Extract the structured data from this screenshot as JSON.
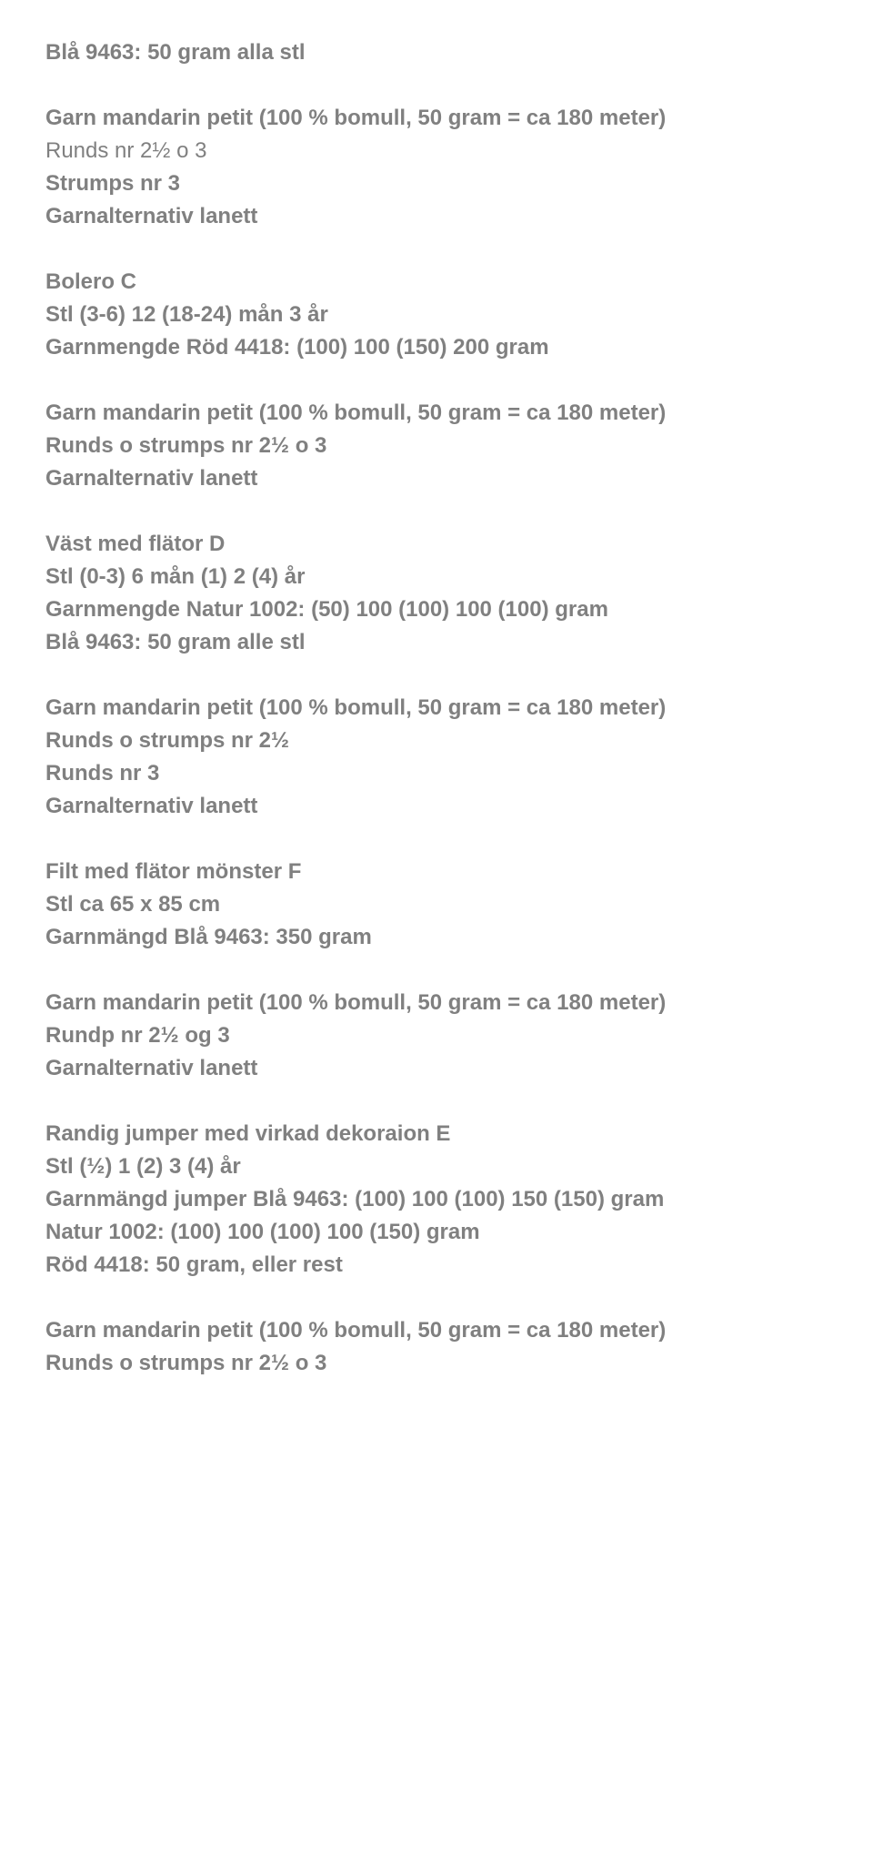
{
  "text_color": "#808080",
  "background_color": "#ffffff",
  "font_family": "Arial, Helvetica, sans-serif",
  "font_size_pt": 18,
  "sections": [
    {
      "lines": [
        {
          "text": "Blå 9463: 50 gram alla stl",
          "bold": true
        }
      ]
    },
    {
      "lines": [
        {
          "text": "Garn mandarin petit (100 % bomull, 50 gram = ca 180 meter)",
          "bold": true
        },
        {
          "text": "Runds nr 2½ o 3",
          "bold": false
        },
        {
          "text": "Strumps nr 3",
          "bold": true
        },
        {
          "text": "Garnalternativ lanett",
          "bold": true
        }
      ]
    },
    {
      "lines": [
        {
          "text": "Bolero C",
          "bold": true
        },
        {
          "text": "Stl (3-6) 12 (18-24) mån 3 år",
          "bold": true
        },
        {
          "text": "Garnmengde Röd 4418: (100) 100 (150) 200 gram",
          "bold": true
        }
      ]
    },
    {
      "lines": [
        {
          "text": "Garn mandarin petit (100 % bomull, 50 gram = ca 180 meter)",
          "bold": true
        },
        {
          "text": "Runds o strumps nr 2½ o 3",
          "bold": true
        },
        {
          "text": "Garnalternativ lanett",
          "bold": true
        }
      ]
    },
    {
      "lines": [
        {
          "text": "Väst med flätor D",
          "bold": true
        },
        {
          "text": "Stl (0-3) 6 mån (1) 2 (4) år",
          "bold": true
        },
        {
          "text": "Garnmengde Natur 1002: (50) 100 (100) 100 (100) gram",
          "bold": true
        },
        {
          "text": "Blå 9463: 50 gram alle stl",
          "bold": true
        }
      ]
    },
    {
      "lines": [
        {
          "text": "Garn mandarin petit (100 % bomull, 50 gram = ca 180 meter)",
          "bold": true
        },
        {
          "text": "Runds o strumps nr 2½",
          "bold": true
        },
        {
          "text": "Runds nr 3",
          "bold": true
        },
        {
          "text": "Garnalternativ lanett",
          "bold": true
        }
      ]
    },
    {
      "lines": [
        {
          "text": "Filt med flätor mönster F",
          "bold": true
        },
        {
          "text": "Stl ca 65 x 85 cm",
          "bold": true
        },
        {
          "text": "Garnmängd Blå 9463: 350 gram",
          "bold": true
        }
      ]
    },
    {
      "lines": [
        {
          "text": "Garn mandarin petit (100 % bomull, 50 gram = ca 180 meter)",
          "bold": true
        },
        {
          "text": "Rundp nr 2½ og 3",
          "bold": true
        },
        {
          "text": "Garnalternativ lanett",
          "bold": true
        }
      ]
    },
    {
      "lines": [
        {
          "text": "Randig jumper med virkad dekoraion E",
          "bold": true
        },
        {
          "text": "Stl (½) 1 (2) 3 (4) år",
          "bold": true
        },
        {
          "text": "Garnmängd jumper Blå 9463: (100) 100 (100) 150 (150) gram",
          "bold": true
        },
        {
          "text": "Natur 1002: (100) 100 (100) 100 (150) gram",
          "bold": true
        },
        {
          "text": "Röd 4418: 50 gram, eller rest",
          "bold": true
        }
      ]
    },
    {
      "lines": [
        {
          "text": "Garn mandarin petit (100 % bomull, 50 gram = ca 180 meter)",
          "bold": true
        },
        {
          "text": "Runds o strumps nr 2½ o 3",
          "bold": true
        }
      ]
    }
  ]
}
